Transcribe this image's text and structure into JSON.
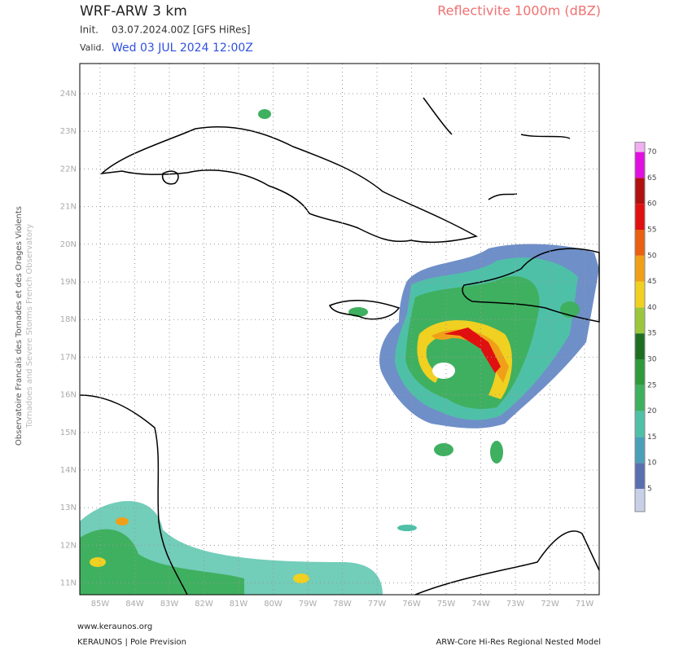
{
  "header": {
    "title": "WRF-ARW 3 km",
    "product": "Reflectivite 1000m (dBZ)",
    "init_label": "Init.",
    "init_value": "03.07.2024.00Z [GFS HiRes]",
    "valid_label": "Valid.",
    "valid_value": "Wed 03 JUL 2024 12:00Z"
  },
  "side": {
    "line1": "Observatoire Francais des Tornades et des Orages Violents",
    "line2": "Tornadoes and Severe Storms French Observatory"
  },
  "map": {
    "lat_labels": [
      "24N",
      "23N",
      "22N",
      "21N",
      "20N",
      "19N",
      "18N",
      "17N",
      "16N",
      "15N",
      "14N",
      "13N",
      "12N",
      "11N"
    ],
    "lon_labels": [
      "85W",
      "84W",
      "83W",
      "82W",
      "81W",
      "80W",
      "79W",
      "78W",
      "77W",
      "76W",
      "75W",
      "74W",
      "73W",
      "72W",
      "71W"
    ]
  },
  "colorbar": {
    "ticks": [
      5,
      10,
      15,
      20,
      25,
      30,
      35,
      40,
      45,
      50,
      55,
      60,
      65,
      70
    ],
    "colors": [
      "#c8d0e8",
      "#5a6fb0",
      "#4a9fb8",
      "#4fc0a8",
      "#3fb060",
      "#2e9a3a",
      "#1e6e22",
      "#9cc63c",
      "#f0d020",
      "#f0a018",
      "#e86010",
      "#e01010",
      "#b01010",
      "#e010e0",
      "#f0b0f0"
    ]
  },
  "footer": {
    "site": "www.keraunos.org",
    "org": "KERAUNOS | Pole Prevision",
    "model": "ARW-Core Hi-Res Regional Nested Model"
  }
}
